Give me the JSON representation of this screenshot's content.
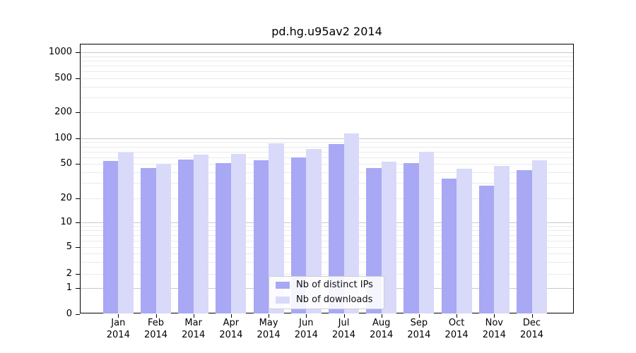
{
  "title": "pd.hg.u95av2 2014",
  "chart_data": {
    "type": "bar",
    "title": "pd.hg.u95av2 2014",
    "categories": [
      "Jan",
      "Feb",
      "Mar",
      "Apr",
      "May",
      "Jun",
      "Jul",
      "Aug",
      "Sep",
      "Oct",
      "Nov",
      "Dec"
    ],
    "category_year": "2014",
    "series": [
      {
        "name": "Nb of distinct IPs",
        "color": "#a8a8f5",
        "values": [
          54,
          45,
          56,
          51,
          55,
          60,
          86,
          45,
          51,
          34,
          28,
          42
        ]
      },
      {
        "name": "Nb of downloads",
        "color": "#d9d9fa",
        "values": [
          68,
          50,
          64,
          65,
          88,
          75,
          115,
          53,
          69,
          44,
          47,
          55
        ]
      }
    ],
    "xlabel": "",
    "ylabel": "",
    "yscale": "log",
    "yticks": [
      0,
      1,
      2,
      5,
      10,
      20,
      50,
      100,
      200,
      500,
      1000
    ],
    "ylim": [
      0,
      1300
    ],
    "grid": true,
    "legend_position": "bottom-center-inside"
  },
  "legend": {
    "items": [
      {
        "label": "Nb of distinct IPs",
        "color": "#a8a8f5"
      },
      {
        "label": "Nb of downloads",
        "color": "#d9d9fa"
      }
    ]
  }
}
